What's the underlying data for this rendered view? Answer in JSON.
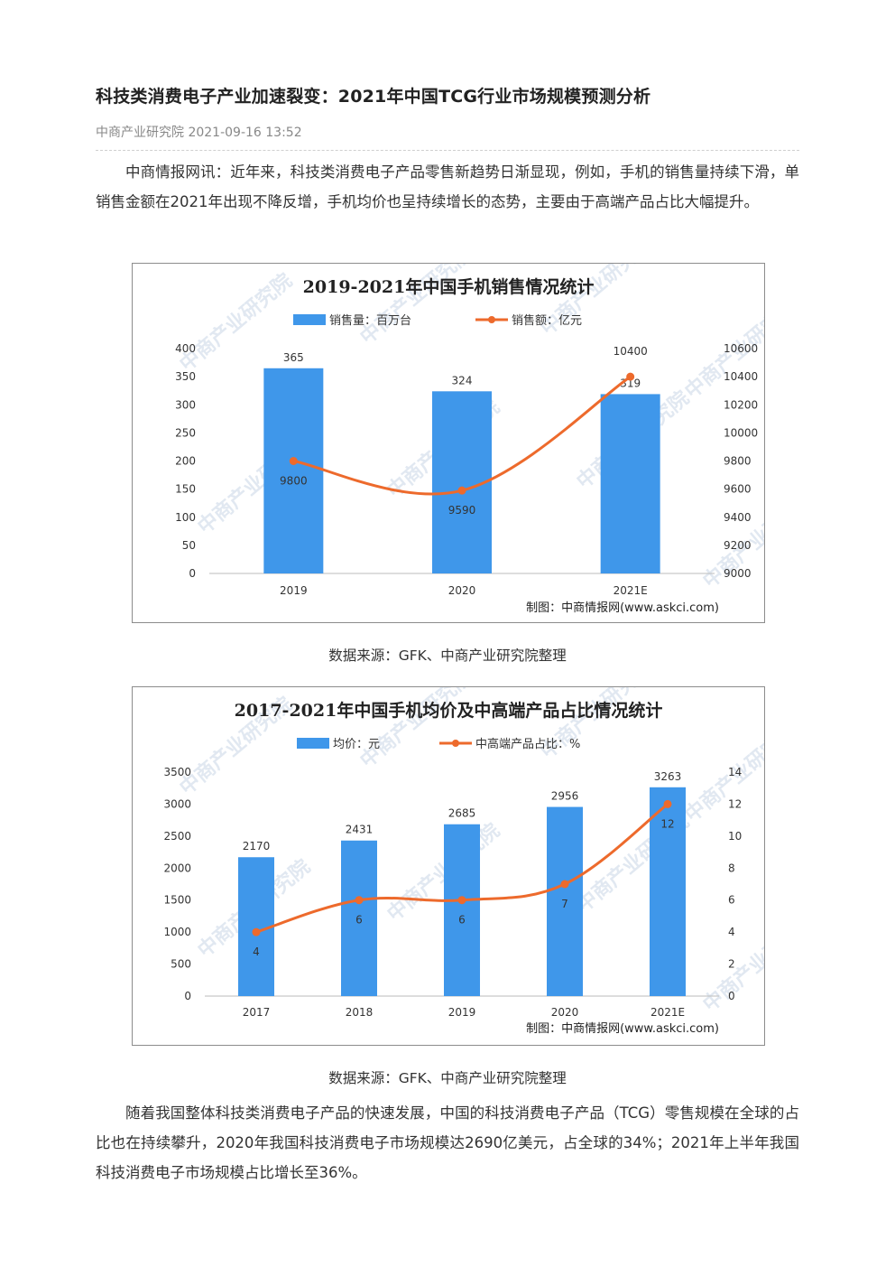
{
  "article": {
    "title": "科技类消费电子产业加速裂变：2021年中国TCG行业市场规模预测分析",
    "meta": "中商产业研究院 2021-09-16 13:52",
    "para1": "中商情报网讯：近年来，科技类消费电子产品零售新趋势日渐显现，例如，手机的销售量持续下滑，单销售金额在2021年出现不降反增，手机均价也呈持续增长的态势，主要由于高端产品占比大幅提升。",
    "caption1": "数据来源：GFK、中商产业研究院整理",
    "caption2": "数据来源：GFK、中商产业研究院整理",
    "para2": "随着我国整体科技类消费电子产品的快速发展，中国的科技消费电子产品（TCG）零售规模在全球的占比也在持续攀升，2020年我国科技消费电子市场规模达2690亿美元，占全球的34%；2021年上半年我国科技消费电子市场规模占比增长至36%。"
  },
  "colors": {
    "bar": "#3f97ea",
    "line": "#ed6a2c",
    "axis": "#999999",
    "text": "#333333",
    "watermark": "#c9d6e6"
  },
  "watermark_text": "中商产业研究院",
  "chart_data": [
    {
      "type": "bar",
      "title": "2019-2021年中国手机销售情况统计",
      "credit": "制图：中商情报网(www.askci.com)",
      "categories": [
        "2019",
        "2020",
        "2021E"
      ],
      "series": [
        {
          "name": "销售量：百万台",
          "type": "bar",
          "axis": "left",
          "values": [
            365,
            324,
            319
          ]
        },
        {
          "name": "销售额：亿元",
          "type": "line",
          "axis": "right",
          "values": [
            9800,
            9590,
            10400
          ]
        }
      ],
      "y_left": {
        "min": 0,
        "max": 400,
        "ticks": [
          "0",
          "50",
          "100",
          "150",
          "200",
          "250",
          "300",
          "350",
          "400"
        ]
      },
      "y_right": {
        "min": 9000,
        "max": 10600,
        "ticks": [
          "9000",
          "9200",
          "9400",
          "9600",
          "9800",
          "10000",
          "10200",
          "10400",
          "10600"
        ]
      },
      "legend": "top",
      "grid": false
    },
    {
      "type": "bar",
      "title": "2017-2021年中国手机均价及中高端产品占比情况统计",
      "credit": "制图：中商情报网(www.askci.com)",
      "categories": [
        "2017",
        "2018",
        "2019",
        "2020",
        "2021E"
      ],
      "series": [
        {
          "name": "均价：元",
          "type": "bar",
          "axis": "left",
          "values": [
            2170,
            2431,
            2685,
            2956,
            3263
          ]
        },
        {
          "name": "中高端产品占比：%",
          "type": "line",
          "axis": "right",
          "values": [
            4,
            6,
            6,
            7,
            12
          ]
        }
      ],
      "y_left": {
        "min": 0,
        "max": 3500,
        "ticks": [
          "0",
          "500",
          "1000",
          "1500",
          "2000",
          "2500",
          "3000",
          "3500"
        ]
      },
      "y_right": {
        "min": 0,
        "max": 14,
        "ticks": [
          "0",
          "2",
          "4",
          "6",
          "8",
          "10",
          "12",
          "14"
        ]
      },
      "legend": "top",
      "grid": false
    }
  ]
}
